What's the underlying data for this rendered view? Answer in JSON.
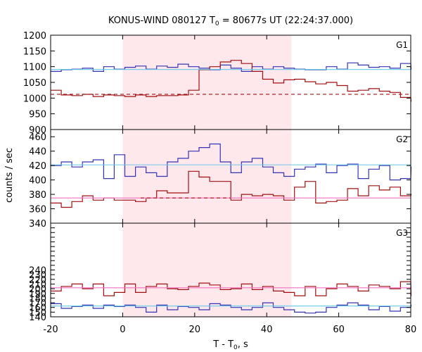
{
  "chart_data": {
    "type": "line",
    "title": "KONUS-WIND 080127 T",
    "title_sub": "0",
    "title_rest": " = 80677s UT (22:24:37.000)",
    "xlabel": "T - T",
    "xlabel_sub": "0",
    "xlabel_rest": ", s",
    "ylabel": "counts / sec",
    "xlim": [
      -20,
      80
    ],
    "xticks": [
      "-20",
      "0",
      "20",
      "40",
      "60",
      "80"
    ],
    "xtick_values": [
      -20,
      0,
      20,
      40,
      60,
      80
    ],
    "shaded_interval": [
      0,
      46.85
    ],
    "colors": {
      "blue": "#3333b3",
      "red": "#a01010",
      "cyan": "#66c8e8",
      "pink": "#f070c0",
      "shade": "#ffe8ec"
    },
    "panels": [
      {
        "label": "G1",
        "ylim": [
          900,
          1200
        ],
        "yticks": [
          900,
          950,
          1000,
          1050,
          1100,
          1150,
          1200
        ],
        "series": [
          {
            "color": "blue",
            "x0": -20,
            "dt": 2.944,
            "values": [
              1085,
              1090,
              1092,
              1095,
              1085,
              1100,
              1092,
              1098,
              1102,
              1092,
              1102,
              1098,
              1108,
              1100,
              1095,
              1090,
              1105,
              1095,
              1085,
              1100,
              1092,
              1100,
              1095,
              1092,
              1090,
              1090,
              1100,
              1092,
              1112,
              1105,
              1098,
              1100,
              1095,
              1110,
              1092
            ]
          },
          {
            "color": "red",
            "x0": -20,
            "dt": 2.944,
            "values": [
              1025,
              1010,
              1008,
              1012,
              1005,
              1010,
              1008,
              1005,
              1010,
              1005,
              1008,
              1008,
              1010,
              1025,
              1090,
              1100,
              1115,
              1120,
              1110,
              1085,
              1060,
              1048,
              1058,
              1060,
              1052,
              1045,
              1050,
              1040,
              1022,
              1025,
              1030,
              1022,
              1018,
              1002,
              990
            ]
          },
          {
            "color": "cyan",
            "style": "solid",
            "segments": [
              [
                -20,
                1091,
                80,
                1091
              ]
            ]
          },
          {
            "color": "red",
            "style": "dashed",
            "segments": [
              [
                -20,
                1012,
                80,
                1012
              ]
            ]
          }
        ]
      },
      {
        "label": "G2",
        "ylim": [
          340,
          470
        ],
        "yticks": [
          340,
          360,
          380,
          400,
          420,
          440,
          460
        ],
        "series": [
          {
            "color": "blue",
            "x0": -20,
            "dt": 2.944,
            "values": [
              420,
              425,
              418,
              425,
              428,
              402,
              435,
              405,
              418,
              410,
              405,
              425,
              430,
              440,
              445,
              450,
              425,
              410,
              425,
              430,
              418,
              410,
              405,
              415,
              418,
              422,
              410,
              420,
              422,
              402,
              415,
              420,
              400,
              402,
              418
            ]
          },
          {
            "color": "red",
            "x0": -20,
            "dt": 2.944,
            "values": [
              368,
              362,
              370,
              378,
              372,
              375,
              372,
              372,
              370,
              375,
              385,
              382,
              382,
              412,
              404,
              398,
              398,
              372,
              380,
              378,
              380,
              378,
              372,
              390,
              398,
              368,
              370,
              372,
              388,
              378,
              392,
              386,
              390,
              378,
              380
            ]
          },
          {
            "color": "cyan",
            "style": "solid",
            "segments": [
              [
                -20,
                421,
                80,
                421
              ]
            ]
          },
          {
            "color": "pink",
            "style": "solid",
            "segments": [
              [
                -20,
                375,
                80,
                375
              ]
            ]
          },
          {
            "color": "red",
            "style": "dashed",
            "segments": [
              [
                5,
                375,
                30,
                375
              ]
            ]
          }
        ]
      },
      {
        "label": "G3",
        "ylim": [
          140,
          340
        ],
        "yticks": [
          140,
          150,
          160,
          170,
          180,
          190,
          200,
          210,
          220,
          230,
          240,
          250,
          260,
          270,
          280,
          290,
          300,
          310,
          320,
          330,
          340
        ],
        "ytick_labels": [
          "140",
          "150",
          "160",
          "170",
          "180",
          "190",
          "200",
          "210",
          "220",
          "230",
          "240",
          "",
          "",
          "",
          "",
          "",
          "",
          "",
          "",
          "",
          ""
        ],
        "series": [
          {
            "color": "blue",
            "x0": -20,
            "dt": 2.944,
            "values": [
              168,
              158,
              162,
              165,
              158,
              165,
              162,
              165,
              160,
              150,
              165,
              155,
              162,
              160,
              155,
              168,
              165,
              160,
              155,
              160,
              170,
              160,
              155,
              150,
              148,
              150,
              160,
              165,
              170,
              165,
              155,
              162,
              152,
              160,
              165
            ]
          },
          {
            "color": "red",
            "x0": -20,
            "dt": 2.944,
            "values": [
              195,
              205,
              210,
              200,
              210,
              185,
              192,
              210,
              192,
              205,
              210,
              200,
              198,
              205,
              212,
              208,
              198,
              200,
              210,
              198,
              205,
              195,
              192,
              185,
              205,
              185,
              200,
              210,
              205,
              195,
              208,
              205,
              200,
              215,
              185
            ]
          },
          {
            "color": "pink",
            "style": "solid",
            "segments": [
              [
                -20,
                202,
                80,
                202
              ]
            ]
          },
          {
            "color": "cyan",
            "style": "solid",
            "segments": [
              [
                -20,
                163,
                80,
                163
              ]
            ]
          }
        ]
      }
    ]
  }
}
